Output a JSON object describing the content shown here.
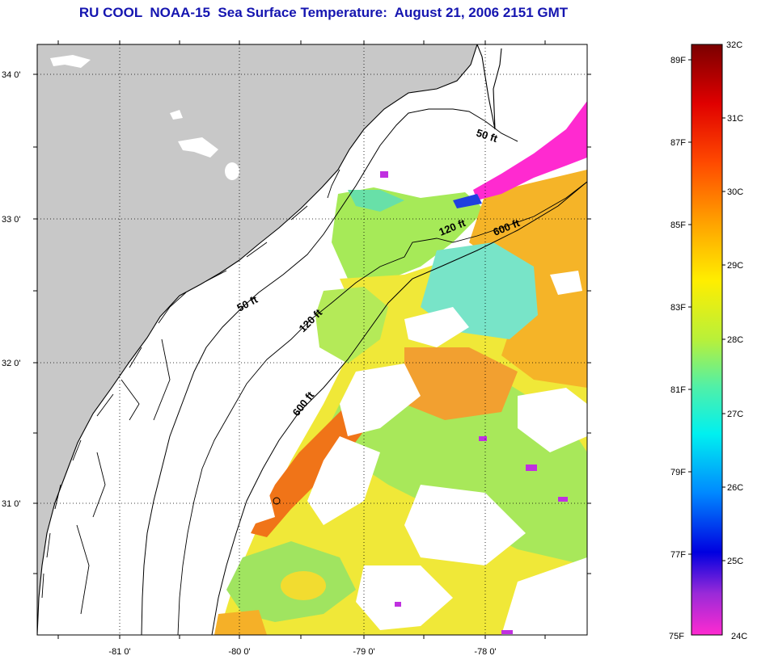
{
  "title": "RU COOL  NOAA-15  Sea Surface Temperature:  August 21, 2006 2151 GMT",
  "lat_labels": [
    "34 0'",
    "33 0'",
    "32 0'",
    "31 0'"
  ],
  "lon_labels": [
    "-81 0'",
    "-80 0'",
    "-79 0'",
    "-78 0'"
  ],
  "contours": {
    "c50_north": "50 ft",
    "c120_north": "120 ft",
    "c600_north": "600 ft",
    "c50_south": "50 ft",
    "c120_south": "120 ft",
    "c600_south": "600 ft"
  },
  "colorbar": {
    "celsius": [
      "32C",
      "31C",
      "30C",
      "29C",
      "28C",
      "27C",
      "26C",
      "25C",
      "24C"
    ],
    "fahrenheit": [
      "89F",
      "87F",
      "85F",
      "83F",
      "81F",
      "79F",
      "77F",
      "75F"
    ]
  },
  "colors": {
    "land": "#c8c8c8",
    "title": "#1515b0"
  }
}
